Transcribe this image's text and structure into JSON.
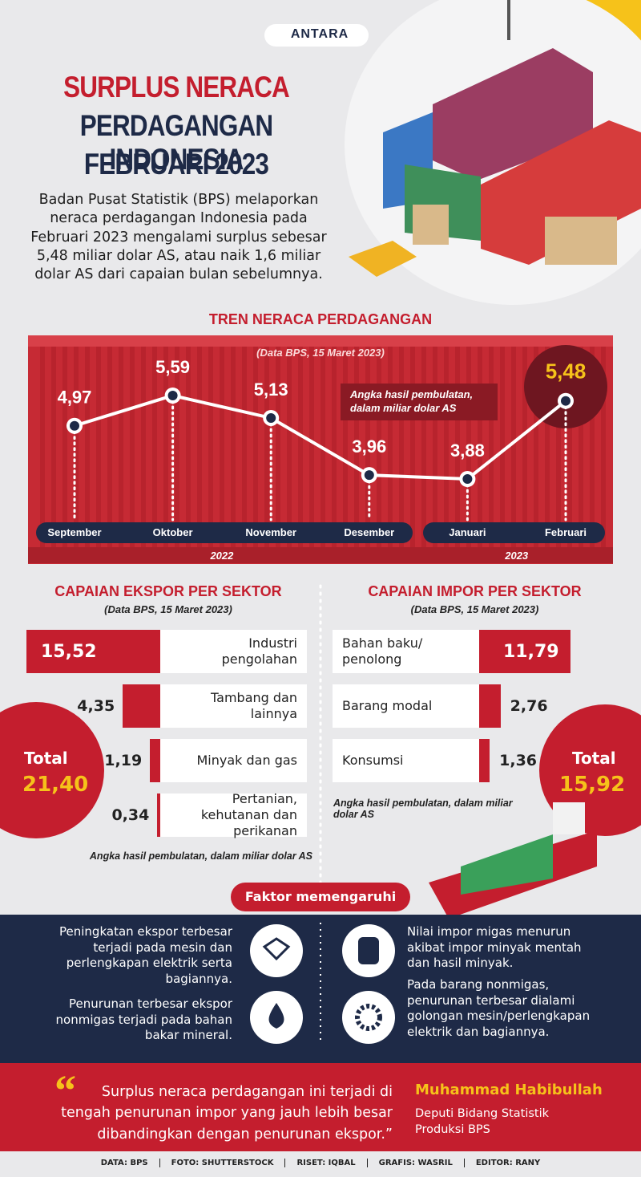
{
  "header": {
    "brand": "ANTARA",
    "title": [
      "SURPLUS NERACA",
      "PERDAGANGAN INDONESIA",
      "FEBRUARI 2023"
    ],
    "intro": "Badan Pusat Statistik (BPS) melaporkan neraca perdagangan Indonesia pada Februari 2023 mengalami surplus sebesar 5,48 miliar dolar AS, atau naik 1,6 miliar dolar AS dari capaian bulan sebelumnya."
  },
  "chart_data": [
    {
      "type": "line",
      "title": "TREN NERACA PERDAGANGAN",
      "subtitle": "(Data BPS, 15 Maret 2023)",
      "annotation": "Angka hasil pembulatan, dalam miliar dolar AS",
      "categories": [
        "September",
        "Oktober",
        "November",
        "Desember",
        "Januari",
        "Februari"
      ],
      "years": [
        "2022",
        "2023"
      ],
      "values": [
        4.97,
        5.59,
        5.13,
        3.96,
        3.88,
        5.48
      ],
      "value_labels": [
        "4,97",
        "5,59",
        "5,13",
        "3,96",
        "3,88",
        "5,48"
      ],
      "color": "#ffffff"
    },
    {
      "type": "bar",
      "title": "CAPAIAN EKSPOR PER SEKTOR",
      "subtitle": "(Data BPS, 15 Maret 2023)",
      "categories": [
        "Industri pengolahan",
        "Tambang dan lainnya",
        "Minyak dan gas",
        "Pertanian, kehutanan dan perikanan"
      ],
      "values": [
        15.52,
        4.35,
        1.19,
        0.34
      ],
      "value_labels": [
        "15,52",
        "4,35",
        "1,19",
        "0,34"
      ],
      "total_label": "Total",
      "total": 21.4,
      "total_value_label": "21,40",
      "note": "Angka hasil pembulatan, dalam miliar dolar AS",
      "color": "#c41e2e"
    },
    {
      "type": "bar",
      "title": "CAPAIAN IMPOR PER SEKTOR",
      "subtitle": "(Data BPS, 15 Maret 2023)",
      "categories": [
        "Bahan baku/ penolong",
        "Barang modal",
        "Konsumsi"
      ],
      "values": [
        11.79,
        2.76,
        1.36
      ],
      "value_labels": [
        "11,79",
        "2,76",
        "1,36"
      ],
      "total_label": "Total",
      "total": 15.92,
      "total_value_label": "15,92",
      "note": "Angka hasil pembulatan, dalam miliar dolar AS",
      "color": "#c41e2e"
    }
  ],
  "factors": {
    "title": "Faktor memengaruhi",
    "left": [
      "Peningkatan ekspor terbesar terjadi pada mesin dan perlengkapan elektrik serta bagiannya.",
      "Penurunan terbesar ekspor nonmigas terjadi pada bahan bakar mineral."
    ],
    "right": [
      "Nilai impor migas menurun akibat impor minyak mentah dan hasil minyak.",
      "Pada barang nonmigas, penurunan terbesar dialami golongan mesin/perlengkapan elektrik dan bagiannya."
    ]
  },
  "quote": {
    "mark": "“",
    "text": "Surplus neraca perdagangan ini terjadi di tengah penurunan impor yang jauh lebih besar dibandingkan dengan penurunan ekspor.”",
    "name": "Muhammad Habibullah",
    "role": "Deputi Bidang Statistik Produksi BPS"
  },
  "credits": [
    "DATA: BPS",
    "FOTO: SHUTTERSTOCK",
    "RISET: IQBAL",
    "GRAFIS: WASRIL",
    "EDITOR: RANY"
  ]
}
